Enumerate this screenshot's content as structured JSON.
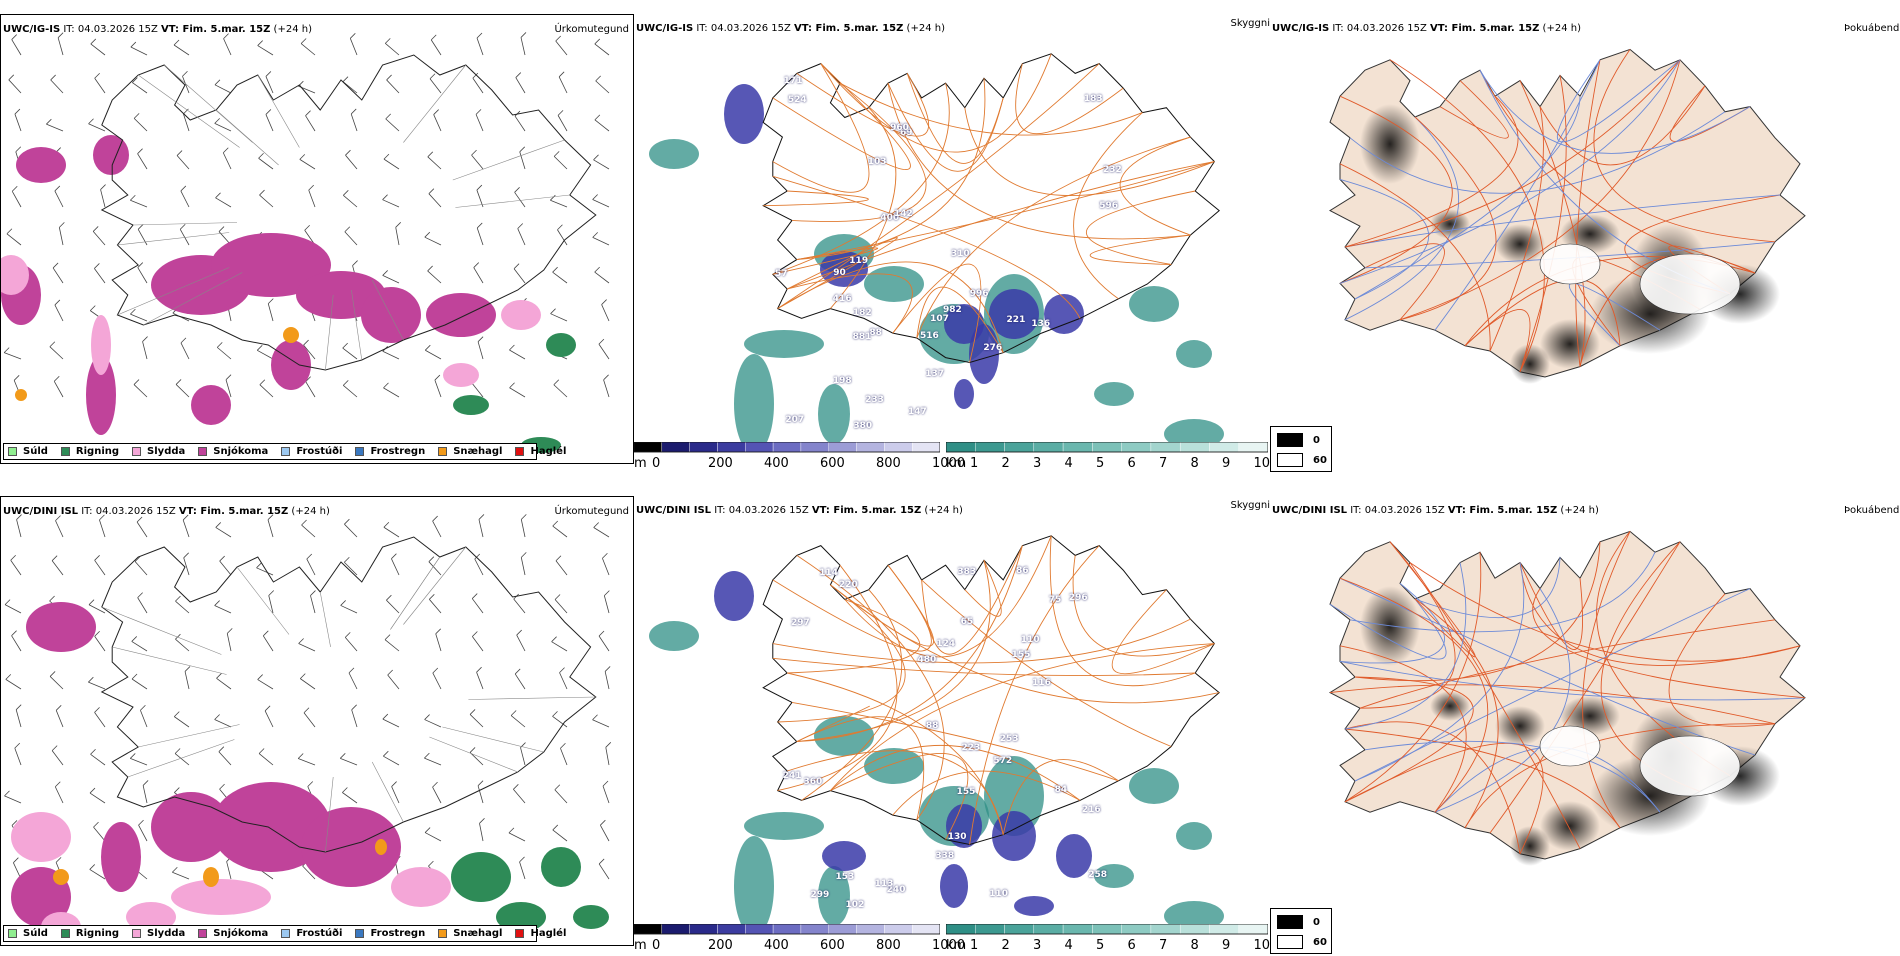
{
  "rows": [
    {
      "header": {
        "model": "UWC/IG-IS",
        "it": " IT: 04.03.2026 15Z ",
        "vt": "VT: Fim. 5.mar. 15Z",
        "lead": " (+24 h)"
      },
      "visibility_labels": [
        "524",
        "171",
        "57",
        "183",
        "232",
        "276",
        "69",
        "88",
        "207",
        "221",
        "881",
        "310",
        "380",
        "416",
        "107",
        "400",
        "516",
        "198",
        "103",
        "142",
        "596",
        "137",
        "233",
        "119",
        "90",
        "982",
        "182",
        "136",
        "147",
        "960",
        "996"
      ]
    },
    {
      "header": {
        "model": "UWC/DINI ISL",
        "it": " IT: 04.03.2026 15Z ",
        "vt": "VT: Fim. 5.mar. 15Z",
        "lead": " (+24 h)"
      },
      "visibility_labels": [
        "155",
        "155",
        "360",
        "216",
        "110",
        "383",
        "114",
        "153",
        "223",
        "572",
        "338",
        "88",
        "84",
        "296",
        "65",
        "241",
        "86",
        "102",
        "130",
        "240",
        "110",
        "253",
        "297",
        "124",
        "75",
        "220",
        "116",
        "113",
        "299",
        "258",
        "480"
      ]
    }
  ],
  "panel_titles": {
    "precip": "Úrkomutegund",
    "visibility": "Skyggni",
    "cloud": "Þokuábendi"
  },
  "precip_legend": [
    {
      "label": "Súld",
      "color": "#90ee90"
    },
    {
      "label": "Rigning",
      "color": "#2e8b57"
    },
    {
      "label": "Slydda",
      "color": "#f4a6d7"
    },
    {
      "label": "Snjókoma",
      "color": "#c0439a"
    },
    {
      "label": "Frostúði",
      "color": "#9cc8f0"
    },
    {
      "label": "Frostregn",
      "color": "#3a78c0"
    },
    {
      "label": "Snæhagl",
      "color": "#f29a1a"
    },
    {
      "label": "Haglél",
      "color": "#e01010"
    }
  ],
  "elevation_bar": {
    "unit": "m",
    "ticks": [
      "0",
      "200",
      "400",
      "600",
      "800",
      "1000"
    ]
  },
  "visibility_bar": {
    "unit": "km",
    "ticks": [
      "1",
      "2",
      "3",
      "4",
      "5",
      "6",
      "7",
      "8",
      "9",
      "10"
    ]
  },
  "cloud_legend": [
    {
      "label": "0"
    },
    {
      "label": "60"
    }
  ],
  "colors": {
    "roads": "#e07a30",
    "roads_cloud": "#e05a2a",
    "rivers": "#6c8ad8",
    "land_cloud": "#f3e2d3",
    "snow": "#c0439a",
    "rain": "#2e8b57",
    "sleet": "#f4a6d7",
    "vis_teal": "#2f8f86",
    "vis_blue": "#3a3aa8"
  }
}
